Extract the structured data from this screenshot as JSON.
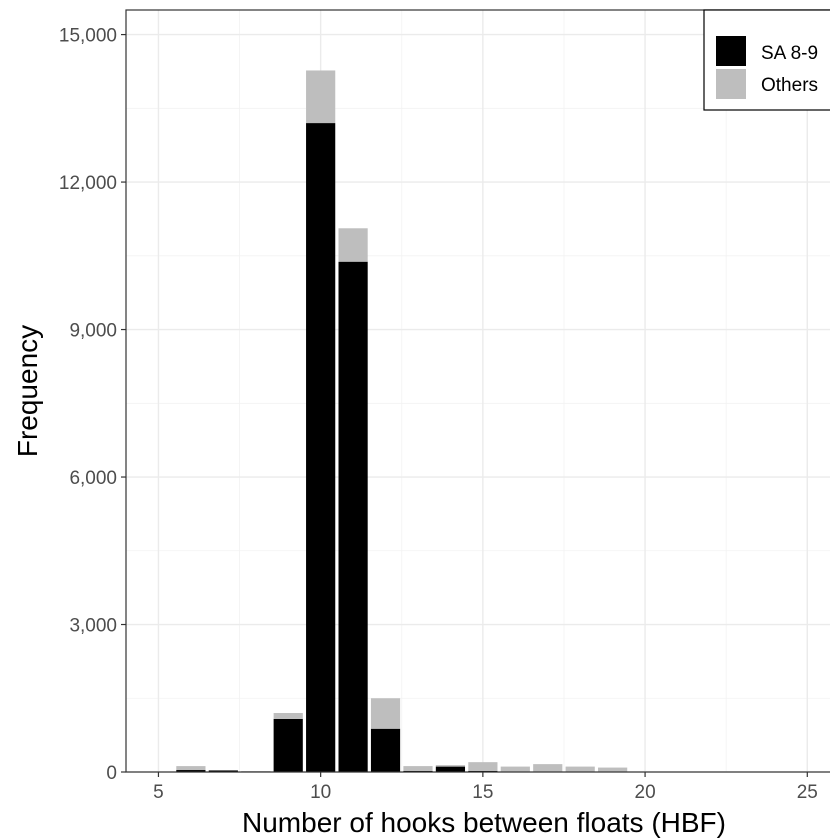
{
  "chart_data": {
    "type": "bar",
    "stacked": true,
    "xlabel": "Number of hooks between floats (HBF)",
    "ylabel": "Frequency",
    "xlim": [
      4,
      25.7
    ],
    "ylim": [
      0,
      15500
    ],
    "x_ticks": [
      5,
      10,
      15,
      20,
      25
    ],
    "x_tick_labels": [
      "5",
      "10",
      "15",
      "20",
      "25"
    ],
    "y_ticks": [
      0,
      3000,
      6000,
      9000,
      12000,
      15000
    ],
    "y_tick_labels": [
      "0",
      "3,000",
      "6,000",
      "9,000",
      "12,000",
      "15,000"
    ],
    "grid": true,
    "legend_position": "top-right",
    "x": [
      6,
      7,
      8,
      9,
      10,
      11,
      12,
      13,
      14,
      15,
      16,
      17,
      18,
      19
    ],
    "series": [
      {
        "name": "SA 8-9",
        "color": "#000000",
        "values": [
          40,
          30,
          10,
          1080,
          13200,
          10380,
          880,
          20,
          110,
          20,
          10,
          10,
          10,
          10
        ]
      },
      {
        "name": "Others",
        "color": "#bebebe",
        "values": [
          80,
          10,
          10,
          120,
          1070,
          680,
          620,
          100,
          30,
          180,
          100,
          150,
          100,
          80
        ]
      }
    ]
  }
}
